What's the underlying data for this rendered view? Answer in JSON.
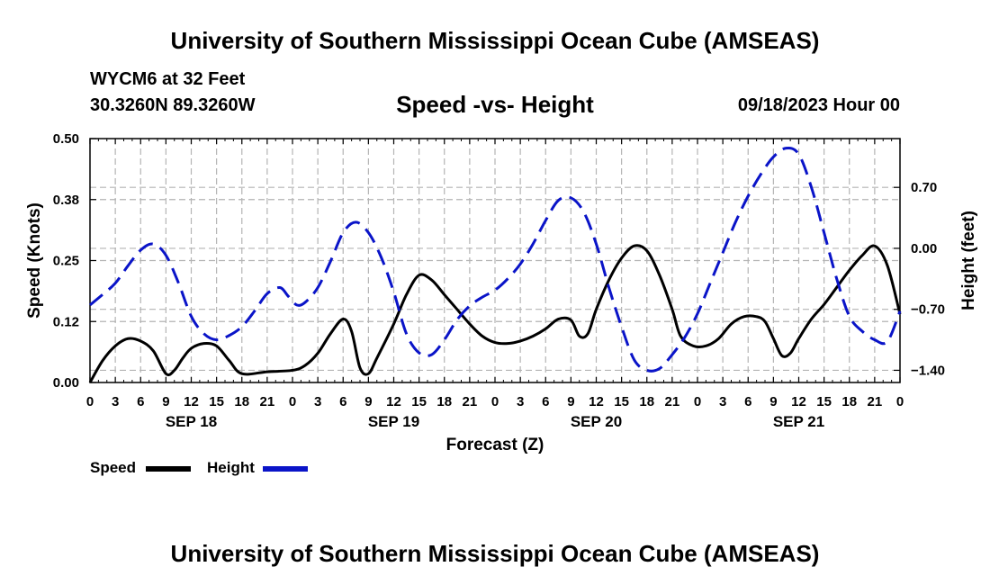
{
  "header": {
    "title": "University of Southern Mississippi Ocean Cube (AMSEAS)",
    "station": "WYCM6 at 32 Feet",
    "coordinates": "30.3260N  89.3260W",
    "subtitle": "Speed -vs- Height",
    "date": "09/18/2023 Hour 00"
  },
  "footer": {
    "title": "University of Southern Mississippi Ocean Cube (AMSEAS)"
  },
  "legend": {
    "speed_label": "Speed",
    "height_label": "Height"
  },
  "chart_data": {
    "type": "line",
    "title": "Speed -vs- Height",
    "xlabel": "Forecast (Z)",
    "ylabel_left": "Speed (Knots)",
    "ylabel_right": "Height (feet)",
    "x_range_hours": [
      0,
      96
    ],
    "xticks": [
      0,
      3,
      6,
      9,
      12,
      15,
      18,
      21,
      24,
      27,
      30,
      33,
      36,
      39,
      42,
      45,
      48,
      51,
      54,
      57,
      60,
      63,
      66,
      69,
      72,
      75,
      78,
      81,
      84,
      87,
      90,
      93,
      96
    ],
    "xtick_labels": [
      "0",
      "3",
      "6",
      "9",
      "12",
      "15",
      "18",
      "21",
      "0",
      "3",
      "6",
      "9",
      "12",
      "15",
      "18",
      "21",
      "0",
      "3",
      "6",
      "9",
      "12",
      "15",
      "18",
      "21",
      "0",
      "3",
      "6",
      "9",
      "12",
      "15",
      "18",
      "21",
      "0"
    ],
    "day_labels": [
      {
        "hour": 12,
        "label": "SEP 18"
      },
      {
        "hour": 36,
        "label": "SEP 19"
      },
      {
        "hour": 60,
        "label": "SEP 20"
      },
      {
        "hour": 84,
        "label": "SEP 21"
      }
    ],
    "ylim_left": [
      0,
      0.5
    ],
    "yticks_left": [
      0.0,
      0.125,
      0.25,
      0.375,
      0.5
    ],
    "ytick_labels_left": [
      "0.00",
      "0.12",
      "0.25",
      "0.38",
      "0.50"
    ],
    "ylim_right": [
      -1.54,
      1.26
    ],
    "yticks_right": [
      -1.4,
      -0.7,
      0.0,
      0.7
    ],
    "ytick_labels_right": [
      "−1.40",
      "−0.70",
      "0.00",
      "0.70"
    ],
    "grid": true,
    "legend": "bottom-left",
    "series": [
      {
        "name": "Speed",
        "axis": "left",
        "color": "#000000",
        "style": "solid",
        "points": [
          [
            0,
            0.0
          ],
          [
            1.5,
            0.045
          ],
          [
            3,
            0.075
          ],
          [
            4.5,
            0.09
          ],
          [
            6,
            0.085
          ],
          [
            7.5,
            0.065
          ],
          [
            9,
            0.018
          ],
          [
            10,
            0.025
          ],
          [
            11,
            0.05
          ],
          [
            12,
            0.07
          ],
          [
            13.5,
            0.08
          ],
          [
            15,
            0.075
          ],
          [
            16.5,
            0.045
          ],
          [
            18,
            0.018
          ],
          [
            21,
            0.022
          ],
          [
            24,
            0.025
          ],
          [
            25.5,
            0.035
          ],
          [
            27,
            0.06
          ],
          [
            28.5,
            0.1
          ],
          [
            30,
            0.13
          ],
          [
            31,
            0.105
          ],
          [
            32,
            0.03
          ],
          [
            33,
            0.018
          ],
          [
            34,
            0.05
          ],
          [
            36,
            0.12
          ],
          [
            37.5,
            0.18
          ],
          [
            39,
            0.22
          ],
          [
            40.5,
            0.21
          ],
          [
            42,
            0.18
          ],
          [
            43.5,
            0.15
          ],
          [
            45,
            0.12
          ],
          [
            46.5,
            0.095
          ],
          [
            48,
            0.082
          ],
          [
            49.5,
            0.08
          ],
          [
            51,
            0.085
          ],
          [
            52.5,
            0.095
          ],
          [
            54,
            0.11
          ],
          [
            55.5,
            0.13
          ],
          [
            57,
            0.128
          ],
          [
            58,
            0.095
          ],
          [
            59,
            0.1
          ],
          [
            60,
            0.15
          ],
          [
            61.5,
            0.21
          ],
          [
            63,
            0.255
          ],
          [
            64.5,
            0.28
          ],
          [
            66,
            0.27
          ],
          [
            67.5,
            0.22
          ],
          [
            69,
            0.15
          ],
          [
            70,
            0.095
          ],
          [
            71.5,
            0.075
          ],
          [
            73,
            0.075
          ],
          [
            74.5,
            0.09
          ],
          [
            76,
            0.12
          ],
          [
            77.5,
            0.135
          ],
          [
            79,
            0.135
          ],
          [
            80,
            0.125
          ],
          [
            81,
            0.09
          ],
          [
            82,
            0.055
          ],
          [
            83,
            0.06
          ],
          [
            84,
            0.09
          ],
          [
            85.5,
            0.13
          ],
          [
            87,
            0.16
          ],
          [
            88.5,
            0.195
          ],
          [
            90,
            0.23
          ],
          [
            91.5,
            0.26
          ],
          [
            93,
            0.28
          ],
          [
            94.5,
            0.24
          ],
          [
            96,
            0.14
          ]
        ]
      },
      {
        "name": "Height",
        "axis": "right",
        "color": "#0a14c8",
        "style": "dashed",
        "points": [
          [
            0,
            -0.65
          ],
          [
            1.5,
            -0.53
          ],
          [
            3,
            -0.4
          ],
          [
            4.5,
            -0.2
          ],
          [
            6,
            -0.02
          ],
          [
            7.5,
            0.05
          ],
          [
            9,
            -0.08
          ],
          [
            10.5,
            -0.4
          ],
          [
            12,
            -0.78
          ],
          [
            13.5,
            -0.98
          ],
          [
            15,
            -1.05
          ],
          [
            16.5,
            -1.0
          ],
          [
            18,
            -0.9
          ],
          [
            19.5,
            -0.72
          ],
          [
            21,
            -0.52
          ],
          [
            22.5,
            -0.45
          ],
          [
            23.5,
            -0.55
          ],
          [
            24.5,
            -0.65
          ],
          [
            25.5,
            -0.62
          ],
          [
            27,
            -0.45
          ],
          [
            28.5,
            -0.15
          ],
          [
            30,
            0.18
          ],
          [
            31.5,
            0.3
          ],
          [
            33,
            0.18
          ],
          [
            34.5,
            -0.1
          ],
          [
            36,
            -0.5
          ],
          [
            37.5,
            -0.98
          ],
          [
            39,
            -1.2
          ],
          [
            40.5,
            -1.22
          ],
          [
            42,
            -1.05
          ],
          [
            43.5,
            -0.82
          ],
          [
            45,
            -0.66
          ],
          [
            46.5,
            -0.56
          ],
          [
            48,
            -0.48
          ],
          [
            49.5,
            -0.35
          ],
          [
            51,
            -0.18
          ],
          [
            52.5,
            0.05
          ],
          [
            54,
            0.32
          ],
          [
            55.5,
            0.55
          ],
          [
            57,
            0.58
          ],
          [
            58.5,
            0.42
          ],
          [
            60,
            0.05
          ],
          [
            61.5,
            -0.45
          ],
          [
            63,
            -0.9
          ],
          [
            64.5,
            -1.28
          ],
          [
            66,
            -1.4
          ],
          [
            67.5,
            -1.38
          ],
          [
            69,
            -1.22
          ],
          [
            70.5,
            -1.02
          ],
          [
            72,
            -0.75
          ],
          [
            73.5,
            -0.4
          ],
          [
            75,
            -0.05
          ],
          [
            76.5,
            0.3
          ],
          [
            78,
            0.6
          ],
          [
            79.5,
            0.85
          ],
          [
            81,
            1.05
          ],
          [
            82.5,
            1.15
          ],
          [
            84,
            1.08
          ],
          [
            85.5,
            0.7
          ],
          [
            87,
            0.18
          ],
          [
            88.5,
            -0.35
          ],
          [
            90,
            -0.78
          ],
          [
            91.5,
            -0.95
          ],
          [
            93,
            -1.05
          ],
          [
            94.5,
            -1.07
          ],
          [
            96,
            -0.72
          ]
        ]
      }
    ]
  }
}
